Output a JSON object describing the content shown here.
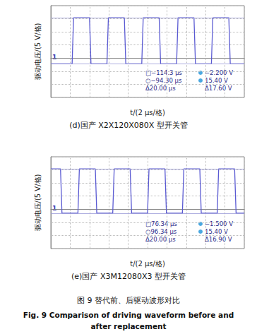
{
  "chart_data": [
    {
      "type": "line",
      "caption": "(d)国产 X2X120X080X 型开关管",
      "x_label": "t/(2 μs/格)",
      "y_label": "驱动电压/(5 V/格)",
      "xlim": [
        0,
        20
      ],
      "xticks": [
        0,
        2,
        4,
        6,
        8,
        10,
        12,
        14,
        16,
        18,
        20
      ],
      "ylim": [
        -15,
        20
      ],
      "yticks": [
        -15,
        -10,
        -5,
        0,
        5,
        10,
        15,
        20
      ],
      "grid": true,
      "tick_labels": false,
      "color": "#5a5ad2",
      "x": [
        0,
        2.2,
        2.35,
        4.0,
        4.15,
        5.8,
        5.95,
        7.6,
        7.75,
        9.4,
        9.55,
        11.2,
        11.35,
        13.0,
        13.15,
        14.8,
        14.95,
        16.6,
        16.75,
        18.4,
        18.55,
        20
      ],
      "values": [
        -2.2,
        -2.2,
        15.4,
        15.4,
        -2.2,
        -2.2,
        15.4,
        15.4,
        -2.2,
        -2.2,
        15.4,
        15.4,
        -2.2,
        -2.2,
        15.4,
        15.4,
        -2.2,
        -2.2,
        15.4,
        15.4,
        -2.2,
        -2.2
      ],
      "cursors": [
        -2.2,
        15.4
      ],
      "channel": "1",
      "readout_time": [
        "□−114.3 μs",
        "○−94.30 μs",
        "Δ20.00 μs"
      ],
      "readout_voltage": [
        "−2.200 V",
        "15.40 V",
        "Δ17.60 V"
      ]
    },
    {
      "type": "line",
      "caption": "(e)国产 X3M12080X3 型开关管",
      "x_label": "t/(2 μs/格)",
      "y_label": "驱动电压/(5 V/格)",
      "xlim": [
        0,
        20
      ],
      "xticks": [
        0,
        2,
        4,
        6,
        8,
        10,
        12,
        14,
        16,
        18,
        20
      ],
      "ylim": [
        -15,
        20
      ],
      "yticks": [
        -15,
        -10,
        -5,
        0,
        5,
        10,
        15,
        20
      ],
      "grid": true,
      "tick_labels": false,
      "color": "#5a5ad2",
      "x": [
        0,
        1.0,
        1.15,
        2.8,
        2.95,
        4.6,
        4.75,
        6.4,
        6.55,
        8.2,
        8.35,
        10.0,
        10.15,
        11.8,
        11.95,
        13.6,
        13.75,
        15.4,
        15.55,
        17.2,
        17.35,
        19.0,
        19.15,
        20
      ],
      "values": [
        15.4,
        15.4,
        -1.5,
        -1.5,
        15.4,
        15.4,
        -1.5,
        -1.5,
        15.4,
        15.4,
        -1.5,
        -1.5,
        15.4,
        15.4,
        -1.5,
        -1.5,
        15.4,
        15.4,
        -1.5,
        -1.5,
        15.4,
        15.4,
        -1.5,
        -1.5
      ],
      "cursors": [
        -1.5,
        15.4
      ],
      "channel": "1",
      "readout_time": [
        "□76.34 μs",
        "○96.34 μs",
        "Δ20.00 μs"
      ],
      "readout_voltage": [
        "−1.500 V",
        "15.40 V",
        "Δ16.90 V"
      ]
    }
  ],
  "figure_caption": [
    "图 9 替代前、后驱动波形对比",
    "Fig. 9 Comparison of driving waveform before and",
    "after replacement"
  ]
}
